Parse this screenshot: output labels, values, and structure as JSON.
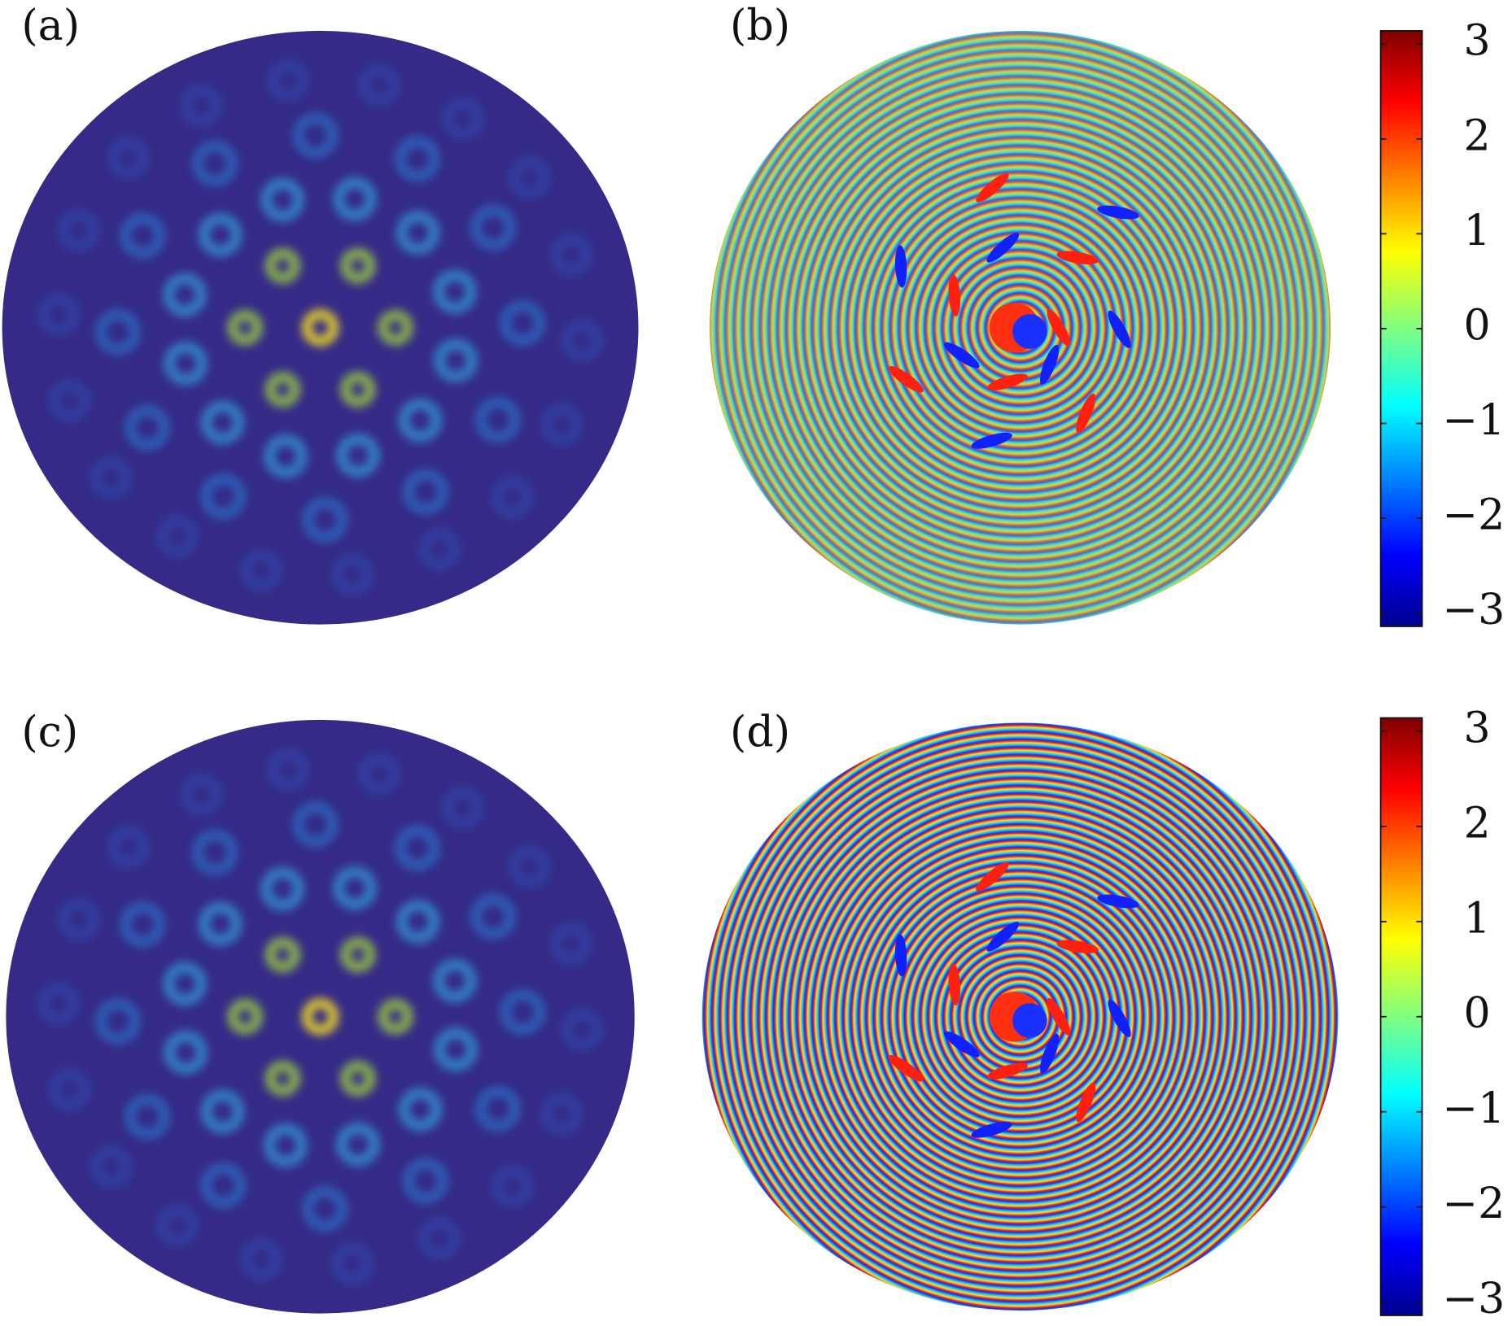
{
  "panels": [
    {
      "label": "(a)"
    },
    {
      "label": "(b)"
    },
    {
      "label": "(c)"
    },
    {
      "label": "(d)"
    }
  ],
  "chart_data": [
    {
      "type": "colorbar",
      "colormap": "jet",
      "ylim": [
        -3.14,
        3.14
      ],
      "yticks": [
        {
          "value": -3,
          "label": "−3"
        },
        {
          "value": -2,
          "label": "−2"
        },
        {
          "value": -1,
          "label": "−1"
        },
        0,
        1,
        2,
        3
      ]
    },
    {
      "type": "colorbar",
      "colormap": "jet",
      "ylim": [
        -3.14,
        3.14
      ],
      "yticks": [
        {
          "value": -3,
          "label": "−3"
        },
        {
          "value": -2,
          "label": "−2"
        },
        {
          "value": -1,
          "label": "−1"
        },
        0,
        1,
        2,
        3
      ]
    }
  ]
}
